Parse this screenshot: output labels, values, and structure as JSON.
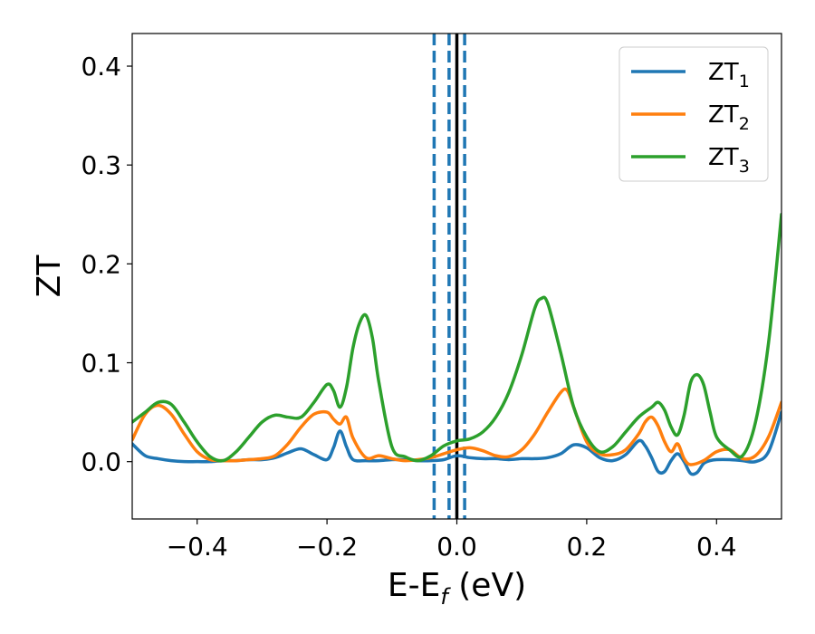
{
  "chart_data": {
    "type": "line",
    "xlabel": "E-E",
    "xlabel_sub": "f",
    "xlabel_unit": " (eV)",
    "ylabel": "ZT",
    "xlim": [
      -0.5,
      0.5
    ],
    "ylim": [
      -0.058,
      0.433
    ],
    "x_ticks": [
      -0.4,
      -0.2,
      0.0,
      0.2,
      0.4
    ],
    "x_tick_labels": [
      "−0.4",
      "−0.2",
      "0.0",
      "0.2",
      "0.4"
    ],
    "y_ticks": [
      0.0,
      0.1,
      0.2,
      0.3,
      0.4
    ],
    "y_tick_labels": [
      "0.0",
      "0.1",
      "0.2",
      "0.3",
      "0.4"
    ],
    "grid": false,
    "legend_position": "top-right",
    "vlines": [
      {
        "x": -0.035,
        "style": "dashed",
        "color": "#1f77b4"
      },
      {
        "x": -0.012,
        "style": "dashed",
        "color": "#1f77b4"
      },
      {
        "x": 0.0,
        "style": "solid",
        "color": "#000000"
      },
      {
        "x": 0.012,
        "style": "dashed",
        "color": "#1f77b4"
      }
    ],
    "series": [
      {
        "name": "ZT",
        "name_sub": "1",
        "color": "#1f77b4",
        "x": [
          -0.5,
          -0.48,
          -0.46,
          -0.44,
          -0.42,
          -0.4,
          -0.38,
          -0.36,
          -0.34,
          -0.32,
          -0.3,
          -0.28,
          -0.26,
          -0.24,
          -0.22,
          -0.2,
          -0.19,
          -0.18,
          -0.17,
          -0.16,
          -0.14,
          -0.12,
          -0.1,
          -0.08,
          -0.06,
          -0.04,
          -0.02,
          0.0,
          0.02,
          0.04,
          0.06,
          0.08,
          0.1,
          0.12,
          0.14,
          0.16,
          0.18,
          0.2,
          0.22,
          0.24,
          0.26,
          0.28,
          0.29,
          0.3,
          0.31,
          0.32,
          0.33,
          0.34,
          0.35,
          0.36,
          0.37,
          0.38,
          0.39,
          0.4,
          0.42,
          0.44,
          0.46,
          0.48,
          0.5
        ],
        "y": [
          0.018,
          0.006,
          0.003,
          0.001,
          0.0,
          0.0,
          0.0,
          0.001,
          0.001,
          0.002,
          0.002,
          0.004,
          0.009,
          0.013,
          0.007,
          0.002,
          0.014,
          0.031,
          0.015,
          0.002,
          0.001,
          0.001,
          0.002,
          0.002,
          0.001,
          0.001,
          0.002,
          0.006,
          0.004,
          0.003,
          0.003,
          0.002,
          0.003,
          0.003,
          0.004,
          0.008,
          0.017,
          0.014,
          0.004,
          0.001,
          0.007,
          0.021,
          0.016,
          0.004,
          -0.01,
          -0.01,
          0.001,
          0.008,
          0.0,
          -0.012,
          -0.011,
          -0.002,
          0.001,
          0.002,
          0.002,
          0.001,
          0.0,
          0.01,
          0.05
        ]
      },
      {
        "name": "ZT",
        "name_sub": "2",
        "color": "#ff7f0e",
        "x": [
          -0.5,
          -0.48,
          -0.46,
          -0.44,
          -0.42,
          -0.4,
          -0.38,
          -0.36,
          -0.34,
          -0.32,
          -0.3,
          -0.28,
          -0.26,
          -0.24,
          -0.22,
          -0.2,
          -0.19,
          -0.18,
          -0.17,
          -0.16,
          -0.14,
          -0.12,
          -0.1,
          -0.08,
          -0.06,
          -0.04,
          -0.02,
          0.0,
          0.02,
          0.04,
          0.06,
          0.08,
          0.1,
          0.12,
          0.14,
          0.16,
          0.17,
          0.18,
          0.2,
          0.22,
          0.24,
          0.26,
          0.28,
          0.29,
          0.3,
          0.31,
          0.32,
          0.33,
          0.34,
          0.35,
          0.36,
          0.38,
          0.4,
          0.42,
          0.44,
          0.46,
          0.48,
          0.5
        ],
        "y": [
          0.022,
          0.048,
          0.057,
          0.048,
          0.028,
          0.01,
          0.002,
          0.001,
          0.001,
          0.002,
          0.003,
          0.006,
          0.018,
          0.035,
          0.048,
          0.05,
          0.043,
          0.038,
          0.045,
          0.024,
          0.004,
          0.006,
          0.003,
          0.001,
          0.002,
          0.004,
          0.008,
          0.012,
          0.014,
          0.011,
          0.006,
          0.005,
          0.012,
          0.028,
          0.05,
          0.07,
          0.072,
          0.055,
          0.02,
          0.008,
          0.007,
          0.012,
          0.028,
          0.04,
          0.045,
          0.036,
          0.02,
          0.01,
          0.018,
          0.003,
          -0.003,
          0.001,
          0.01,
          0.012,
          0.003,
          0.006,
          0.025,
          0.06
        ]
      },
      {
        "name": "ZT",
        "name_sub": "3",
        "color": "#2ca02c",
        "x": [
          -0.5,
          -0.48,
          -0.46,
          -0.44,
          -0.42,
          -0.4,
          -0.38,
          -0.36,
          -0.34,
          -0.32,
          -0.3,
          -0.28,
          -0.26,
          -0.24,
          -0.22,
          -0.2,
          -0.19,
          -0.18,
          -0.17,
          -0.16,
          -0.15,
          -0.14,
          -0.13,
          -0.12,
          -0.1,
          -0.08,
          -0.06,
          -0.04,
          -0.02,
          0.0,
          0.02,
          0.04,
          0.06,
          0.08,
          0.1,
          0.12,
          0.13,
          0.14,
          0.16,
          0.18,
          0.2,
          0.22,
          0.24,
          0.26,
          0.28,
          0.3,
          0.31,
          0.32,
          0.33,
          0.34,
          0.35,
          0.36,
          0.37,
          0.38,
          0.39,
          0.4,
          0.42,
          0.44,
          0.46,
          0.48,
          0.5
        ],
        "y": [
          0.04,
          0.05,
          0.06,
          0.058,
          0.04,
          0.02,
          0.005,
          0.001,
          0.01,
          0.025,
          0.04,
          0.047,
          0.045,
          0.045,
          0.06,
          0.078,
          0.072,
          0.055,
          0.075,
          0.115,
          0.14,
          0.148,
          0.125,
          0.08,
          0.015,
          0.005,
          0.001,
          0.006,
          0.016,
          0.021,
          0.023,
          0.03,
          0.045,
          0.07,
          0.108,
          0.155,
          0.165,
          0.16,
          0.11,
          0.055,
          0.025,
          0.01,
          0.015,
          0.03,
          0.045,
          0.055,
          0.06,
          0.052,
          0.035,
          0.027,
          0.047,
          0.08,
          0.088,
          0.078,
          0.05,
          0.025,
          0.012,
          0.006,
          0.04,
          0.12,
          0.25
        ]
      }
    ]
  }
}
